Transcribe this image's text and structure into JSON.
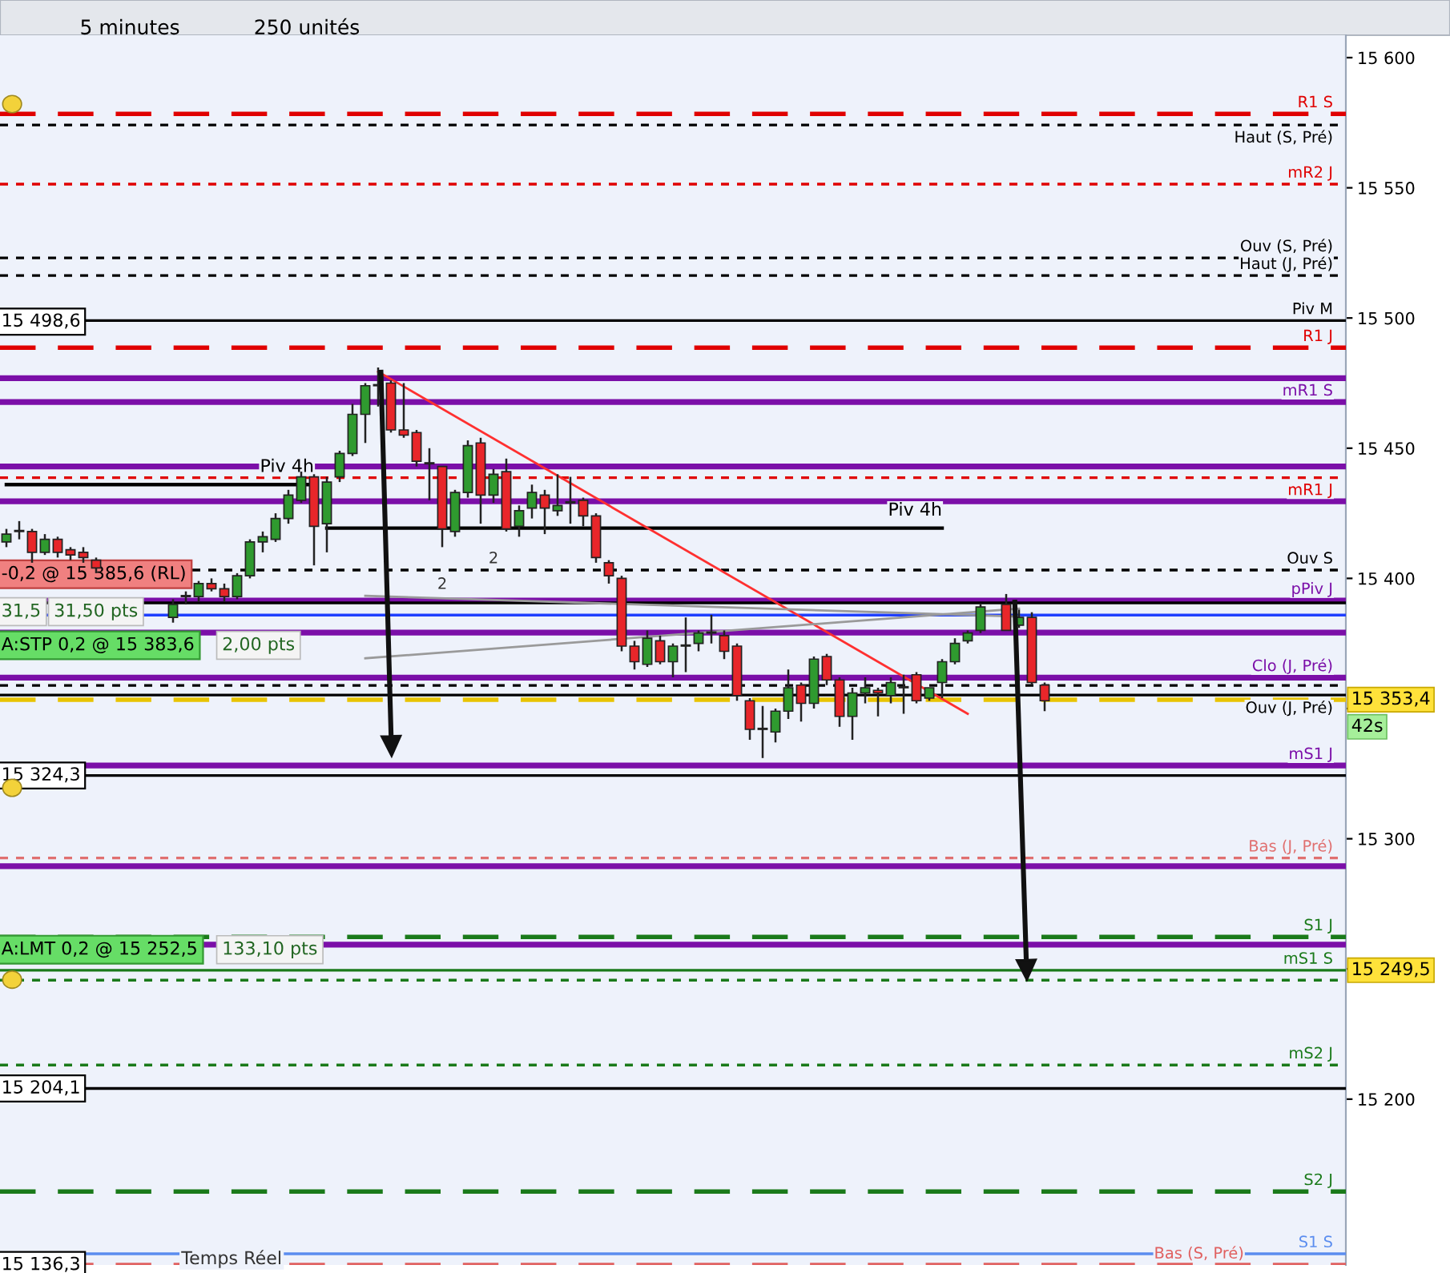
{
  "chart_data": {
    "type": "candlestick",
    "categories": [
      null,
      null,
      null,
      null,
      null,
      null,
      null,
      null,
      null,
      null,
      null,
      null,
      null,
      null,
      null,
      null,
      null,
      null,
      null,
      null,
      null,
      null,
      null,
      null,
      null,
      null,
      null,
      null,
      null,
      null,
      null,
      null,
      null,
      null,
      null,
      null,
      null,
      null,
      null,
      null,
      null,
      null,
      null,
      null,
      null,
      null,
      null,
      null,
      null,
      null,
      null,
      null,
      null,
      null,
      null,
      null,
      null,
      null,
      null,
      null,
      null,
      null,
      null,
      null,
      null,
      null,
      null,
      null,
      null,
      null,
      null,
      null,
      null,
      null,
      null,
      null,
      null,
      null,
      null,
      null,
      null,
      null,
      null,
      null,
      null,
      null,
      null,
      null,
      null,
      null,
      null,
      null,
      null,
      null,
      null,
      null,
      null,
      null,
      null,
      null,
      null,
      null,
      null,
      null,
      null
    ],
    "ohlc": [
      [
        15414,
        15419,
        15412,
        15417
      ],
      [
        15418,
        15422,
        15415,
        15418
      ],
      [
        15418,
        15419,
        15406,
        15410
      ],
      [
        15410,
        15417,
        15409,
        15415
      ],
      [
        15415,
        15416,
        15408,
        15410
      ],
      [
        15411,
        15412,
        15407,
        15409
      ],
      [
        15410,
        15412,
        15406,
        15408
      ],
      [
        15407,
        15408,
        15402,
        15404
      ],
      null,
      null,
      null,
      null,
      null,
      [
        15385,
        15392,
        15383,
        15390
      ],
      [
        15393,
        15395,
        15390,
        15393
      ],
      [
        15393,
        15399,
        15391,
        15398
      ],
      [
        15398,
        15400,
        15395,
        15396
      ],
      [
        15396,
        15398,
        15391,
        15393
      ],
      [
        15393,
        15402,
        15392,
        15401
      ],
      [
        15401,
        15415,
        15400,
        15414
      ],
      [
        15414,
        15418,
        15410,
        15416
      ],
      [
        15415,
        15425,
        15414,
        15423
      ],
      [
        15423,
        15434,
        15421,
        15432
      ],
      [
        15430,
        15441,
        15429,
        15439
      ],
      [
        15439,
        15440,
        15405,
        15420
      ],
      [
        15421,
        15439,
        15410,
        15437
      ],
      [
        15439,
        15449,
        15437,
        15448
      ],
      [
        15448,
        15467,
        15447,
        15463
      ],
      [
        15463,
        15475,
        15452,
        15474
      ],
      [
        15474,
        15481,
        15466,
        15474
      ],
      [
        15475,
        15476,
        15456,
        15457
      ],
      [
        15457,
        15475,
        15454,
        15455
      ],
      [
        15456,
        15457,
        15443,
        15445
      ],
      [
        15444,
        15450,
        15430,
        15444
      ],
      [
        15443,
        15443,
        15412,
        15419
      ],
      [
        15418,
        15434,
        15416,
        15433
      ],
      [
        15433,
        15453,
        15431,
        15451
      ],
      [
        15452,
        15454,
        15421,
        15432
      ],
      [
        15432,
        15442,
        15429,
        15440
      ],
      [
        15441,
        15446,
        15418,
        15419
      ],
      [
        15420,
        15428,
        15416,
        15426
      ],
      [
        15427,
        15436,
        15423,
        15433
      ],
      [
        15432,
        15434,
        15417,
        15427
      ],
      [
        15426,
        15440,
        15424,
        15428
      ],
      [
        15429,
        15439,
        15421,
        15429
      ],
      [
        15430,
        15431,
        15420,
        15424
      ],
      [
        15424,
        15425,
        15406,
        15408
      ],
      [
        15406,
        15407,
        15398,
        15401
      ],
      [
        15400,
        15401,
        15372,
        15374
      ],
      [
        15374,
        15376,
        15365,
        15368
      ],
      [
        15367,
        15380,
        15366,
        15377
      ],
      [
        15376,
        15378,
        15367,
        15368
      ],
      [
        15368,
        15375,
        15362,
        15374
      ],
      [
        15374,
        15385,
        15364,
        15374
      ],
      [
        15375,
        15380,
        15372,
        15379
      ],
      [
        15379,
        15386,
        15375,
        15379
      ],
      [
        15378,
        15380,
        15369,
        15372
      ],
      [
        15374,
        15375,
        15353,
        15355
      ],
      [
        15353,
        15354,
        15338,
        15342
      ],
      [
        15342,
        15351,
        15331,
        15342
      ],
      [
        15341,
        15350,
        15337,
        15349
      ],
      [
        15349,
        15365,
        15346,
        15358
      ],
      [
        15359,
        15360,
        15345,
        15352
      ],
      [
        15352,
        15370,
        15350,
        15369
      ],
      [
        15370,
        15371,
        15359,
        15361
      ],
      [
        15361,
        15362,
        15343,
        15347
      ],
      [
        15347,
        15358,
        15338,
        15356
      ],
      [
        15356,
        15362,
        15352,
        15358
      ],
      [
        15357,
        15358,
        15347,
        15356
      ],
      [
        15355,
        15362,
        15352,
        15360
      ],
      [
        15358,
        15363,
        15348,
        15358
      ],
      [
        15363,
        15364,
        15352,
        15353
      ],
      [
        15354,
        15358,
        15353,
        15358
      ],
      [
        15360,
        15369,
        15354,
        15368
      ],
      [
        15368,
        15377,
        15367,
        15375
      ],
      [
        15376,
        15380,
        15375,
        15379
      ],
      [
        15380,
        15390,
        15379,
        15389
      ],
      null,
      [
        15390,
        15394,
        15380,
        15380
      ],
      [
        15382,
        15388,
        15381,
        15385
      ],
      [
        15385,
        15387,
        15359,
        15360
      ],
      [
        15359,
        15360,
        15349,
        15353
      ],
      null,
      null,
      null,
      null,
      null,
      null,
      null,
      null,
      null,
      null,
      null,
      null,
      null,
      null,
      null,
      null,
      null,
      null,
      null,
      null,
      null,
      null,
      null
    ],
    "colors": [
      "#2f9a2f",
      "#2f9a2f",
      "#e8262a",
      "#2f9a2f",
      "#e8262a",
      "#e8262a",
      "#e8262a",
      "#e8262a",
      null,
      null,
      null,
      null,
      null,
      "#2f9a2f",
      "#2f9a2f",
      "#2f9a2f",
      "#e8262a",
      "#e8262a",
      "#2f9a2f",
      "#2f9a2f",
      "#2f9a2f",
      "#2f9a2f",
      "#2f9a2f",
      "#2f9a2f",
      "#e8262a",
      "#2f9a2f",
      "#2f9a2f",
      "#2f9a2f",
      "#2f9a2f",
      "#2f9a2f",
      "#e8262a",
      "#e8262a",
      "#e8262a",
      "#2f9a2f",
      "#e8262a",
      "#2f9a2f",
      "#2f9a2f",
      "#e8262a",
      "#2f9a2f",
      "#e8262a",
      "#2f9a2f",
      "#2f9a2f",
      "#e8262a",
      "#2f9a2f",
      "#2f9a2f",
      "#e8262a",
      "#e8262a",
      "#e8262a",
      "#e8262a",
      "#e8262a",
      "#2f9a2f",
      "#e8262a",
      "#2f9a2f",
      "#2f9a2f",
      "#2f9a2f",
      "#2f9a2f",
      "#e8262a",
      "#e8262a",
      "#e8262a",
      "#e8262a",
      "#2f9a2f",
      "#2f9a2f",
      "#e8262a",
      "#2f9a2f",
      "#e8262a",
      "#e8262a",
      "#2f9a2f",
      "#2f9a2f",
      "#e8262a",
      "#2f9a2f",
      "#2f9a2f",
      "#e8262a",
      "#2f9a2f",
      "#2f9a2f",
      "#2f9a2f",
      "#2f9a2f",
      "#2f9a2f",
      null,
      "#e8262a",
      "#2f9a2f",
      "#e8262a",
      "#e8262a",
      null,
      null,
      null,
      null,
      null,
      null,
      null,
      null,
      null,
      null,
      null,
      null,
      null,
      null,
      null,
      null,
      null,
      null,
      null,
      null,
      null,
      null,
      null
    ],
    "series": [
      {
        "type": "line",
        "name": "Piv 4h",
        "color": "#000000",
        "values": [
          15436,
          null,
          null,
          null,
          null,
          null,
          null,
          null,
          null,
          null,
          null,
          null,
          null,
          null,
          null,
          null,
          null,
          null,
          null,
          null,
          null,
          null,
          null,
          null,
          15436,
          null,
          null,
          null,
          null,
          null,
          null,
          null,
          null,
          null,
          null,
          null,
          null,
          null,
          null,
          null,
          null,
          null,
          null,
          null,
          null,
          null,
          null,
          null,
          null,
          null,
          null,
          null,
          null,
          null,
          null,
          null,
          null,
          null,
          null,
          null,
          null,
          null,
          null,
          null,
          null,
          null,
          null,
          null,
          null,
          null,
          null,
          null,
          null,
          null,
          null,
          null,
          null,
          null,
          null,
          null,
          null,
          null,
          null,
          null,
          null,
          null,
          null,
          null,
          null,
          null,
          null,
          null,
          null,
          null,
          null,
          null,
          null,
          null,
          null,
          null,
          null,
          null,
          null,
          null,
          null
        ]
      },
      {
        "type": "line",
        "name": "Piv 4h",
        "color": "#000000",
        "values": [
          null,
          null,
          null,
          null,
          null,
          null,
          null,
          null,
          null,
          null,
          null,
          null,
          null,
          null,
          null,
          null,
          null,
          null,
          null,
          null,
          null,
          null,
          null,
          null,
          null,
          15419.3,
          null,
          null,
          null,
          null,
          null,
          null,
          null,
          null,
          null,
          null,
          null,
          null,
          null,
          null,
          null,
          null,
          null,
          null,
          null,
          null,
          null,
          null,
          null,
          null,
          null,
          null,
          null,
          null,
          null,
          null,
          null,
          null,
          null,
          null,
          null,
          null,
          null,
          null,
          null,
          null,
          null,
          null,
          null,
          null,
          null,
          null,
          null,
          15419.3,
          null,
          null,
          null,
          null,
          null,
          null,
          null,
          null,
          null,
          null,
          null,
          null,
          null,
          null,
          null,
          null,
          null,
          null,
          null,
          null,
          null,
          null,
          null,
          null,
          null,
          null,
          null,
          null,
          null,
          null,
          null
        ]
      },
      {
        "type": "line",
        "color": "#ff3030",
        "values": [
          null,
          null,
          null,
          null,
          null,
          null,
          null,
          null,
          null,
          null,
          null,
          null,
          null,
          null,
          null,
          null,
          null,
          null,
          null,
          null,
          null,
          null,
          null,
          null,
          null,
          null,
          null,
          null,
          null,
          15479.4,
          null,
          null,
          null,
          null,
          null,
          null,
          null,
          null,
          null,
          null,
          null,
          null,
          null,
          null,
          null,
          null,
          null,
          null,
          null,
          null,
          null,
          null,
          null,
          null,
          null,
          null,
          null,
          null,
          null,
          null,
          null,
          null,
          null,
          null,
          null,
          null,
          null,
          null,
          null,
          null,
          null,
          null,
          null,
          null,
          null,
          15348,
          null,
          null,
          null,
          null,
          null,
          null,
          null,
          null,
          null,
          null,
          null,
          null,
          null,
          null,
          null,
          null,
          null,
          null,
          null,
          null,
          null,
          null,
          null,
          null,
          null,
          null,
          null,
          null,
          null
        ]
      },
      {
        "type": "line",
        "color": "#9a9a9a",
        "values": [
          null,
          null,
          null,
          null,
          null,
          null,
          null,
          null,
          null,
          null,
          null,
          null,
          null,
          null,
          null,
          null,
          null,
          null,
          null,
          null,
          null,
          null,
          null,
          null,
          null,
          null,
          null,
          null,
          15393.3,
          null,
          null,
          null,
          null,
          null,
          null,
          null,
          null,
          null,
          null,
          null,
          null,
          null,
          null,
          null,
          null,
          null,
          null,
          null,
          null,
          null,
          null,
          null,
          null,
          null,
          null,
          null,
          null,
          null,
          null,
          null,
          null,
          null,
          null,
          null,
          null,
          null,
          null,
          null,
          null,
          null,
          null,
          null,
          null,
          null,
          null,
          null,
          null,
          null,
          null,
          15385.3,
          null,
          null,
          null,
          null,
          null,
          null,
          null,
          null,
          null,
          null,
          null,
          null,
          null,
          null,
          null,
          null,
          null,
          null,
          null,
          null,
          null,
          null,
          null,
          null,
          null
        ]
      },
      {
        "type": "line",
        "color": "#9a9a9a",
        "values": [
          null,
          null,
          null,
          null,
          null,
          null,
          null,
          null,
          null,
          null,
          null,
          null,
          null,
          null,
          null,
          null,
          null,
          null,
          null,
          null,
          null,
          null,
          null,
          null,
          null,
          null,
          null,
          null,
          15369.3,
          null,
          null,
          null,
          null,
          null,
          null,
          null,
          null,
          null,
          null,
          null,
          null,
          null,
          null,
          null,
          null,
          null,
          null,
          null,
          null,
          null,
          null,
          null,
          null,
          null,
          null,
          null,
          null,
          null,
          null,
          null,
          null,
          null,
          null,
          null,
          null,
          null,
          null,
          null,
          null,
          null,
          null,
          null,
          null,
          null,
          null,
          null,
          null,
          null,
          null,
          15388.4,
          null,
          null,
          null,
          null,
          null,
          null,
          null,
          null,
          null,
          null,
          null,
          null,
          null,
          null,
          null,
          null,
          null,
          null,
          null,
          null,
          null,
          null,
          null,
          null,
          null
        ]
      }
    ],
    "ref_lines": [
      {
        "axis": "y",
        "value": 15578.4,
        "label": "R1 S",
        "color": "#e00000",
        "line_style": "dashed"
      },
      {
        "axis": "y",
        "value": 15574.1,
        "label": "Haut (S, Pré)",
        "color": "#000000",
        "line_style": "dotted"
      },
      {
        "axis": "y",
        "value": 15551.4,
        "label": "mR2 J",
        "color": "#e00000",
        "line_style": "dotted"
      },
      {
        "axis": "y",
        "value": 15523.1,
        "label": "Ouv (S, Pré)",
        "color": "#000000",
        "line_style": "dotted"
      },
      {
        "axis": "y",
        "value": 15516.3,
        "label": "Haut (J, Pré)",
        "color": "#000000",
        "line_style": "dotted"
      },
      {
        "axis": "y",
        "value": 15499,
        "label": "Piv M",
        "color": "#000000",
        "line_style": "solid"
      },
      {
        "axis": "y",
        "value": 15488.6,
        "label": "R1 J",
        "color": "#e00000",
        "line_style": "dashed"
      },
      {
        "axis": "y",
        "value": 15476.9,
        "color": "#7b0fa8",
        "line_style": "solid"
      },
      {
        "axis": "y",
        "value": 15467.7,
        "label": "mR1 S",
        "color": "#7b0fa8",
        "line_style": "solid"
      },
      {
        "axis": "y",
        "value": 15443,
        "color": "#7b0fa8",
        "line_style": "solid"
      },
      {
        "axis": "y",
        "value": 15438.7,
        "label": "mR1 J",
        "color": "#e00000",
        "line_style": "dotted"
      },
      {
        "axis": "y",
        "value": 15429.6,
        "color": "#7b0fa8",
        "line_style": "solid"
      },
      {
        "axis": "y",
        "value": 15403.2,
        "label": "Ouv S",
        "color": "#000000",
        "line_style": "dotted"
      },
      {
        "axis": "y",
        "value": 15391.5,
        "label": "pPiv J",
        "color": "#7b0fa8",
        "line_style": "solid"
      },
      {
        "axis": "y",
        "value": 15390.6,
        "color": "#000000",
        "line_style": "solid"
      },
      {
        "axis": "y",
        "value": 15385.9,
        "color": "#1f3fff",
        "line_style": "solid"
      },
      {
        "axis": "y",
        "value": 15379.2,
        "color": "#7b0fa8",
        "line_style": "solid"
      },
      {
        "axis": "y",
        "value": 15361.9,
        "label": "Clo (J, Pré)",
        "color": "#7b0fa8",
        "line_style": "solid"
      },
      {
        "axis": "y",
        "value": 15358.9,
        "color": "#000000",
        "line_style": "dotted"
      },
      {
        "axis": "y",
        "value": 15355.2,
        "label": "Ouv (J, Pré)",
        "color": "#000000",
        "line_style": "solid"
      },
      {
        "axis": "y",
        "value": 15353.4,
        "color": "#e8c400",
        "line_style": "dashed"
      },
      {
        "axis": "y",
        "value": 15328.1,
        "label": "mS1 J",
        "color": "#7b0fa8",
        "line_style": "solid"
      },
      {
        "axis": "y",
        "value": 15324.3,
        "color": "#000000",
        "line_style": "solid"
      },
      {
        "axis": "y",
        "value": 15292.6,
        "label": "Bas (J, Pré)",
        "color": "#e07070",
        "line_style": "dotted"
      },
      {
        "axis": "y",
        "value": 15289.5,
        "color": "#7b0fa8",
        "line_style": "solid"
      },
      {
        "axis": "y",
        "value": 15262.3,
        "label": "S1 J",
        "color": "#1a7a1a",
        "line_style": "dashed"
      },
      {
        "axis": "y",
        "value": 15259.3,
        "color": "#7b0fa8",
        "line_style": "solid"
      },
      {
        "axis": "y",
        "value": 15249.5,
        "label": "mS1 S",
        "color": "#1a7a1a",
        "line_style": "solid"
      },
      {
        "axis": "y",
        "value": 15245.7,
        "color": "#1a7a1a",
        "line_style": "dotted"
      },
      {
        "axis": "y",
        "value": 15213.1,
        "label": "mS2 J",
        "color": "#1a7a1a",
        "line_style": "dotted"
      },
      {
        "axis": "y",
        "value": 15204.1,
        "color": "#000000",
        "line_style": "solid"
      },
      {
        "axis": "y",
        "value": 15164.5,
        "label": "S2 J",
        "color": "#1a7a1a",
        "line_style": "dashed"
      },
      {
        "axis": "y",
        "value": 15140.6,
        "label": "S1 S",
        "color": "#5b8def",
        "line_style": "solid"
      },
      {
        "axis": "y",
        "value": 15136.3,
        "label": "Bas (S, Pré)",
        "color": "#e06060",
        "line_style": "dashed"
      }
    ],
    "annotations": [
      "5 minutes",
      "250 unités",
      "Temps Réel",
      {
        "text": "15 498,6",
        "y": 15498.6
      },
      {
        "text": "15 324,3",
        "y": 15324.3
      },
      {
        "text": "15 204,1",
        "y": 15204.1
      },
      {
        "text": "15 136,3",
        "y": 15136.3
      },
      {
        "text": "-0,2 @ 15 385,6 (RL)",
        "y": 15401.6
      },
      {
        "text": "31,5",
        "y": 15387.2
      },
      {
        "text": "31,50 pts",
        "y": 15387.2
      },
      "A:STP 0,2 @ 15 383,6",
      "2,00 pts",
      {
        "text": "A:LMT 0,2 @ 15 252,5",
        "y": 15257.4
      },
      {
        "text": "133,10 pts",
        "y": 15257.4
      },
      "15 353,4",
      {
        "text": "42s",
        "y": 15343
      },
      "15 249,5",
      "2",
      "2"
    ],
    "ylim": [
      15136.3,
      15608.6
    ],
    "yticks": [
      {
        "value": 15600,
        "label": "15 600"
      },
      {
        "value": 15550,
        "label": "15 550"
      },
      {
        "value": 15500,
        "label": "15 500"
      },
      {
        "value": 15450,
        "label": "15 450"
      },
      {
        "value": 15400,
        "label": "15 400"
      },
      {
        "value": 15350,
        "label": null
      },
      {
        "value": 15300,
        "label": "15 300"
      },
      {
        "value": 15250,
        "label": null
      },
      {
        "value": 15200,
        "label": "15 200"
      }
    ],
    "tick_labels": "y",
    "grid": false
  }
}
